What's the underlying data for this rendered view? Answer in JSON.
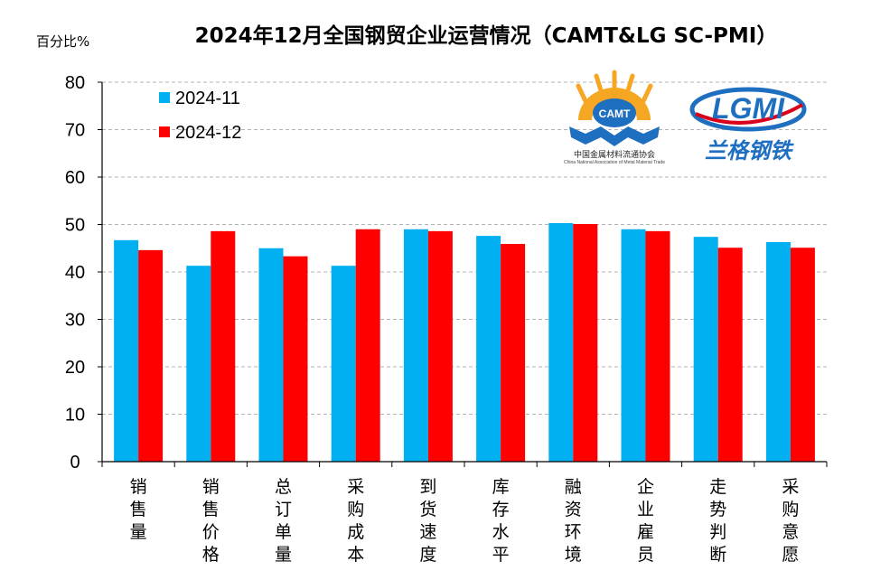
{
  "chart_data": {
    "type": "bar",
    "title": "2024年12月全国钢贸企业运营情况（CAMT&LG SC-PMI）",
    "ylabel": "百分比%",
    "ylim": [
      0,
      80
    ],
    "yticks": [
      0,
      10,
      20,
      30,
      40,
      50,
      60,
      70,
      80
    ],
    "grid": true,
    "legend_position": "top-left",
    "categories": [
      "销售量",
      "销售价格",
      "总订单量",
      "采购成本",
      "到货速度",
      "库存水平",
      "融资环境",
      "企业雇员",
      "走势判断",
      "采购意愿"
    ],
    "series": [
      {
        "name": "2024-11",
        "color": "#00b0f0",
        "values": [
          46.7,
          41.3,
          45.0,
          41.3,
          49.0,
          47.6,
          50.3,
          49.0,
          47.4,
          46.3
        ]
      },
      {
        "name": "2024-12",
        "color": "#ff0000",
        "values": [
          44.6,
          48.6,
          43.3,
          49.0,
          48.6,
          45.9,
          50.1,
          48.6,
          45.1,
          45.1
        ]
      }
    ]
  },
  "logos": {
    "camt": {
      "emblem_text": "CAMT",
      "name_cn": "中国金属材料流通协会",
      "name_en": "China National Association of Metal Material Trade"
    },
    "lgmi": {
      "emblem_text": "LGMI",
      "name_cn": "兰格钢铁"
    }
  }
}
